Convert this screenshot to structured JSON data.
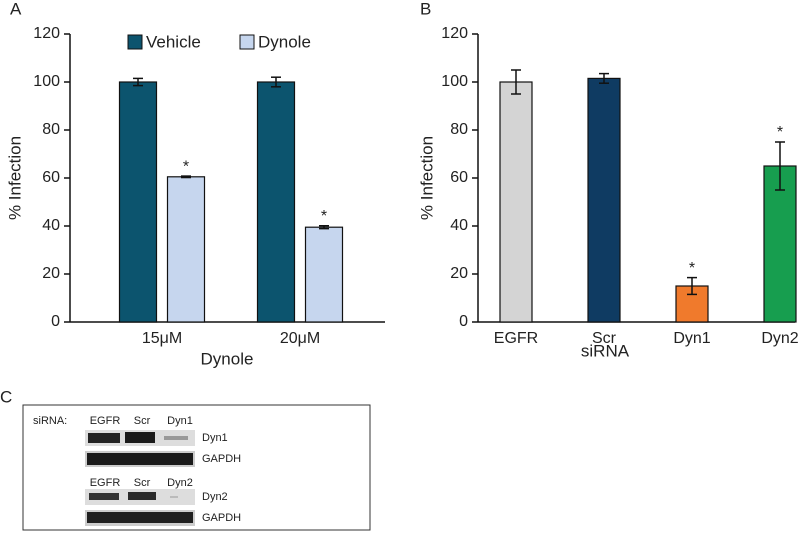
{
  "chart_data": [
    {
      "type": "bar",
      "panel_label": "A",
      "y_label": "% Infection",
      "x_label": "Dynole",
      "categories": [
        "15μM",
        "20μM"
      ],
      "series": [
        {
          "name": "Vehicle",
          "color": "#0c546e",
          "values": [
            100,
            100
          ],
          "errors": [
            1.5,
            2
          ]
        },
        {
          "name": "Dynole",
          "color": "#c6d6ee",
          "values": [
            60.5,
            39.5
          ],
          "errors": [
            0.3,
            0.6
          ],
          "markers": [
            "*",
            "*"
          ]
        }
      ],
      "ylim": [
        0,
        120
      ],
      "yticks": [
        0,
        20,
        40,
        60,
        80,
        100,
        120
      ],
      "legend": "top"
    },
    {
      "type": "bar",
      "panel_label": "B",
      "y_label": "% Infection",
      "x_label": "siRNA",
      "categories": [
        "EGFR",
        "Scr",
        "Dyn1",
        "Dyn2"
      ],
      "values": [
        100,
        101.5,
        15,
        65
      ],
      "errors": [
        5,
        2,
        3.5,
        10
      ],
      "colors": [
        "#d4d4d4",
        "#0f3b62",
        "#f07a2c",
        "#179e4f"
      ],
      "markers": [
        null,
        null,
        "*",
        "*"
      ],
      "ylim": [
        0,
        120
      ],
      "yticks": [
        0,
        20,
        40,
        60,
        80,
        100,
        120
      ]
    }
  ],
  "blot": {
    "panel_label": "C",
    "row_title": "siRNA:",
    "groups": [
      {
        "lanes": [
          "EGFR",
          "Scr",
          "Dyn1"
        ],
        "rows": [
          "Dyn1",
          "GAPDH"
        ]
      },
      {
        "lanes": [
          "EGFR",
          "Scr",
          "Dyn2"
        ],
        "rows": [
          "Dyn2",
          "GAPDH"
        ]
      }
    ]
  }
}
